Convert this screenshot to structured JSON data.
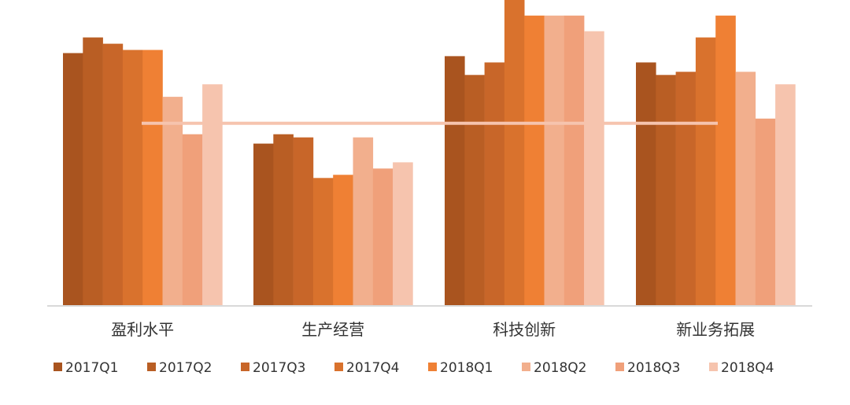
{
  "chart_data": {
    "type": "bar",
    "categories": [
      "盈利水平",
      "生产经营",
      "科技创新",
      "新业务拓展"
    ],
    "series": [
      {
        "name": "2017Q1",
        "color": "#A9541F",
        "values": [
          81,
          52,
          80,
          78
        ]
      },
      {
        "name": "2017Q2",
        "color": "#B95E24",
        "values": [
          86,
          55,
          74,
          74
        ]
      },
      {
        "name": "2017Q3",
        "color": "#C86629",
        "values": [
          84,
          54,
          78,
          75
        ]
      },
      {
        "name": "2017Q4",
        "color": "#D9722D",
        "values": [
          82,
          41,
          98,
          86
        ]
      },
      {
        "name": "2018Q1",
        "color": "#EF8034",
        "values": [
          82,
          42,
          93,
          93
        ]
      },
      {
        "name": "2018Q2",
        "color": "#F2AF8D",
        "values": [
          67,
          54,
          93,
          75
        ]
      },
      {
        "name": "2018Q3",
        "color": "#F0A07A",
        "values": [
          55,
          44,
          93,
          60
        ]
      },
      {
        "name": "2018Q4",
        "color": "#F6C4AE",
        "values": [
          71,
          46,
          88,
          71
        ]
      }
    ],
    "reference_line": {
      "value": 58.5,
      "color": "#F6C4AE"
    },
    "ylim": [
      0,
      98
    ],
    "legend_position": "bottom",
    "grid": false,
    "baseline_color": "#D9D9D9"
  }
}
